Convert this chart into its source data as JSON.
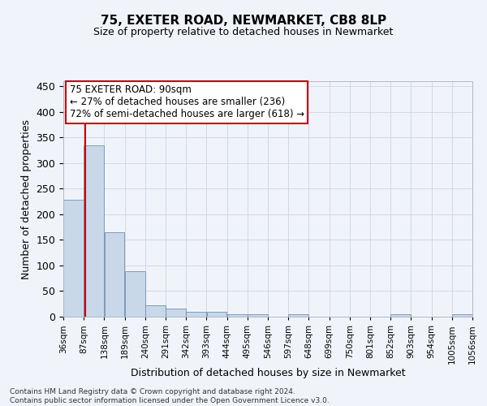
{
  "title": "75, EXETER ROAD, NEWMARKET, CB8 8LP",
  "subtitle": "Size of property relative to detached houses in Newmarket",
  "xlabel": "Distribution of detached houses by size in Newmarket",
  "ylabel": "Number of detached properties",
  "bar_edges": [
    36,
    87,
    138,
    189,
    240,
    291,
    342,
    393,
    444,
    495,
    546,
    597,
    648,
    699,
    750,
    801,
    852,
    903,
    954,
    1005,
    1056
  ],
  "bar_heights": [
    228,
    335,
    165,
    89,
    23,
    16,
    9,
    9,
    5,
    4,
    0,
    5,
    0,
    0,
    0,
    0,
    5,
    0,
    0,
    5
  ],
  "bar_color": "#c8d8e8",
  "bar_edgecolor": "#7090b0",
  "vline_x": 90,
  "vline_color": "#cc0000",
  "annotation_line1": "75 EXETER ROAD: 90sqm",
  "annotation_line2": "← 27% of detached houses are smaller (236)",
  "annotation_line3": "72% of semi-detached houses are larger (618) →",
  "ylim": [
    0,
    460
  ],
  "yticks": [
    0,
    50,
    100,
    150,
    200,
    250,
    300,
    350,
    400,
    450
  ],
  "grid_color": "#d0d8e8",
  "background_color": "#f0f4fa",
  "footer_text": "Contains HM Land Registry data © Crown copyright and database right 2024.\nContains public sector information licensed under the Open Government Licence v3.0.",
  "tick_labels": [
    "36sqm",
    "87sqm",
    "138sqm",
    "189sqm",
    "240sqm",
    "291sqm",
    "342sqm",
    "393sqm",
    "444sqm",
    "495sqm",
    "546sqm",
    "597sqm",
    "648sqm",
    "699sqm",
    "750sqm",
    "801sqm",
    "852sqm",
    "903sqm",
    "954sqm",
    "1005sqm",
    "1056sqm"
  ],
  "title_fontsize": 11,
  "subtitle_fontsize": 9,
  "ylabel_fontsize": 9,
  "xlabel_fontsize": 9,
  "annot_fontsize": 8.5,
  "footer_fontsize": 6.5
}
